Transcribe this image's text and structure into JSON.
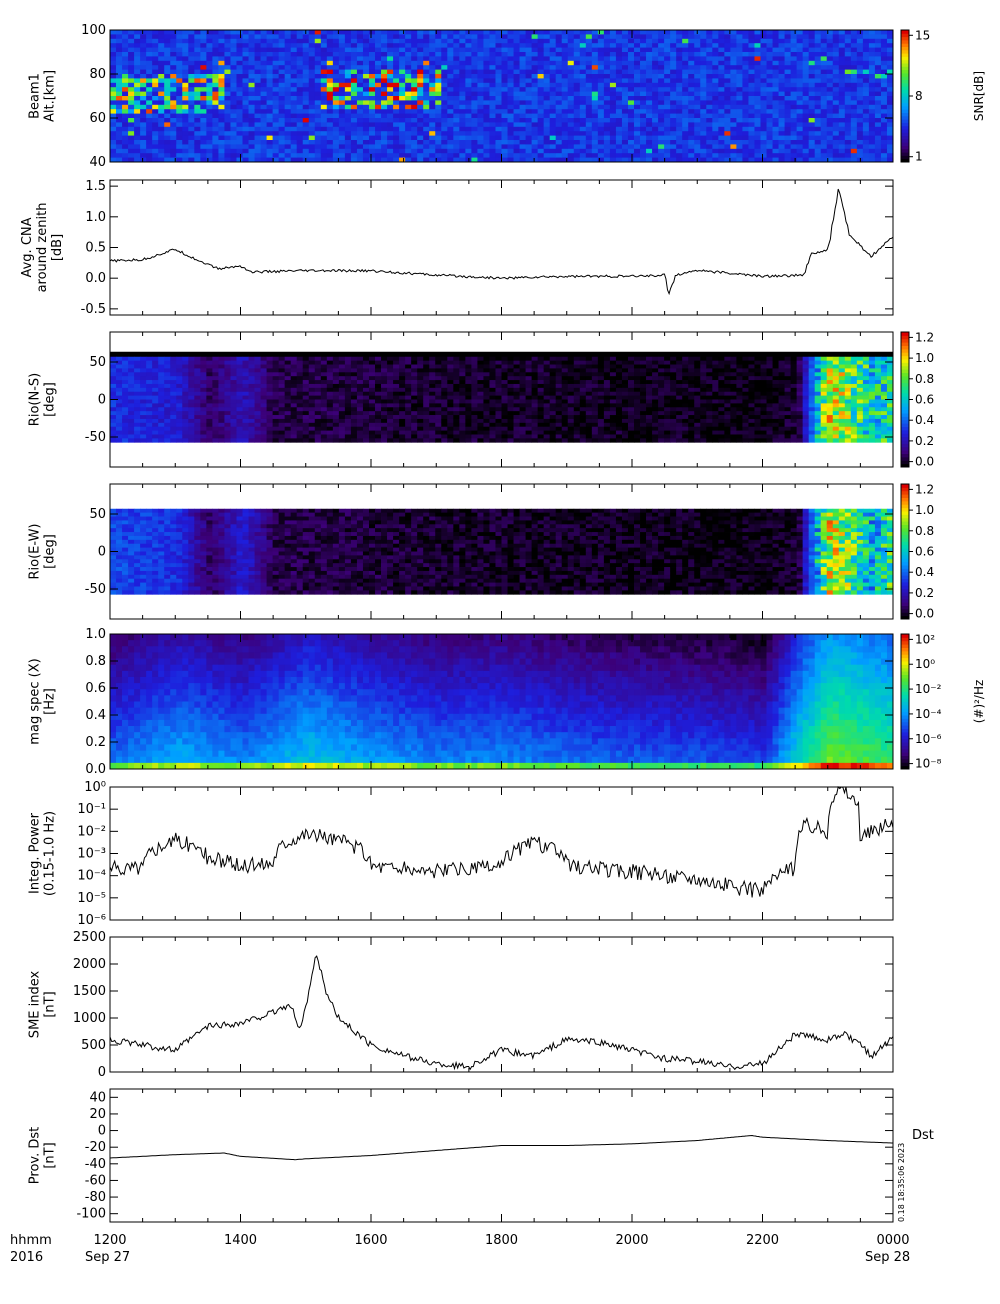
{
  "footer": {
    "row1_label": "hhmm",
    "row2_label": "2016",
    "start_date": "Sep 27",
    "end_date": "Sep 28",
    "time_ticks": [
      "1200",
      "1400",
      "1600",
      "1800",
      "2000",
      "2200",
      "0000"
    ]
  },
  "side_annotation": "0.18 18:35:06 2023",
  "chart_data": [
    {
      "type": "heatmap",
      "ylabel_lines": [
        "Beam1",
        "Alt.[km]"
      ],
      "ylim": [
        40,
        100
      ],
      "yticks": [
        "40",
        "60",
        "80",
        "100"
      ],
      "colorbar": {
        "label": "SNR[dB]",
        "ticks": [
          "1",
          "8",
          "15"
        ],
        "range": [
          1,
          15
        ]
      },
      "features": [
        {
          "t_start": 1200,
          "t_end": 1345,
          "alt_low": 62,
          "alt_high": 80,
          "intensity": 0.55
        },
        {
          "t_start": 1510,
          "t_end": 1700,
          "alt_low": 65,
          "alt_high": 81,
          "intensity": 0.7
        },
        {
          "t_start": 2310,
          "t_end": 2400,
          "alt_low": 78,
          "alt_high": 82,
          "intensity": 0.4
        }
      ]
    },
    {
      "type": "line",
      "ylabel_lines": [
        "Avg. CNA",
        "around zenith",
        "[dB]"
      ],
      "ylim": [
        -0.6,
        1.6
      ],
      "yticks": [
        "-0.5",
        "0.0",
        "0.5",
        "1.0",
        "1.5"
      ],
      "x": [
        1200,
        1230,
        1300,
        1320,
        1340,
        1400,
        1410,
        1500,
        1600,
        1700,
        1800,
        1900,
        2000,
        2030,
        2034,
        2040,
        2100,
        2200,
        2238,
        2245,
        2300,
        2310,
        2320,
        2340,
        2400
      ],
      "values": [
        0.28,
        0.3,
        0.47,
        0.3,
        0.15,
        0.2,
        0.1,
        0.12,
        0.12,
        0.05,
        0.0,
        0.03,
        0.03,
        0.05,
        -0.25,
        0.05,
        0.13,
        0.03,
        0.05,
        0.4,
        0.45,
        1.45,
        0.7,
        0.35,
        0.68
      ]
    },
    {
      "type": "heatmap",
      "ylabel_lines": [
        "Rio(N-S)",
        "[deg]"
      ],
      "ylim": [
        -90,
        90
      ],
      "yticks": [
        "-50",
        "0",
        "50"
      ],
      "colorbar": {
        "label": "",
        "ticks": [
          "0.0",
          "0.2",
          "0.4",
          "0.6",
          "0.8",
          "1.0",
          "1.2"
        ],
        "range": [
          0,
          1.3
        ]
      },
      "profile": {
        "x": [
          1200,
          1300,
          1330,
          1400,
          1430,
          1700,
          2200,
          2230,
          2300,
          2340,
          2400
        ],
        "values": [
          0.35,
          0.3,
          0.1,
          0.25,
          0.08,
          0.05,
          0.02,
          0.05,
          1.0,
          0.65,
          0.8
        ]
      }
    },
    {
      "type": "heatmap",
      "ylabel_lines": [
        "Rio(E-W)",
        "[deg]"
      ],
      "ylim": [
        -90,
        90
      ],
      "yticks": [
        "-50",
        "0",
        "50"
      ],
      "colorbar": {
        "label": "",
        "ticks": [
          "0.0",
          "0.2",
          "0.4",
          "0.6",
          "0.8",
          "1.0",
          "1.2"
        ],
        "range": [
          0,
          1.3
        ]
      },
      "profile": {
        "x": [
          1200,
          1300,
          1330,
          1400,
          1430,
          1700,
          2200,
          2230,
          2300,
          2340,
          2400
        ],
        "values": [
          0.4,
          0.35,
          0.1,
          0.3,
          0.08,
          0.05,
          0.02,
          0.05,
          1.0,
          0.6,
          0.85
        ]
      }
    },
    {
      "type": "heatmap",
      "ylabel_lines": [
        "mag spec (X)",
        "[Hz]"
      ],
      "ylim": [
        0,
        1.0
      ],
      "yticks": [
        "0.0",
        "0.2",
        "0.4",
        "0.6",
        "0.8",
        "1.0"
      ],
      "colorbar": {
        "label": "(#)²/Hz",
        "ticks": [
          "10⁻⁸",
          "10⁻⁶",
          "10⁻⁴",
          "10⁻²",
          "10⁰",
          "10²"
        ],
        "range_log10": [
          -9,
          3
        ]
      },
      "profile": {
        "x": [
          1200,
          1300,
          1400,
          1500,
          1600,
          1700,
          1800,
          1900,
          2000,
          2100,
          2200,
          2230,
          2300,
          2400
        ],
        "values": [
          -4.5,
          -3.5,
          -4.2,
          -3.0,
          -3.8,
          -4.3,
          -4.2,
          -4.6,
          -4.8,
          -5.0,
          -5.3,
          -2.5,
          -0.5,
          -1.5
        ]
      }
    },
    {
      "type": "line",
      "ylabel_lines": [
        "Integ. Power",
        "(0.15-1.0 Hz)"
      ],
      "log_scale": true,
      "ylim_log10": [
        -6,
        0
      ],
      "yticks": [
        "10⁻⁶",
        "10⁻⁵",
        "10⁻⁴",
        "10⁻³",
        "10⁻²",
        "10⁻¹",
        "10⁰"
      ],
      "x": [
        1200,
        1230,
        1300,
        1330,
        1400,
        1430,
        1500,
        1530,
        1600,
        1630,
        1700,
        1730,
        1800,
        1830,
        1900,
        1930,
        2000,
        2030,
        2100,
        2130,
        2200,
        2230,
        2240,
        2300,
        2310,
        2330,
        2400
      ],
      "values": [
        0.0002,
        0.00025,
        0.004,
        0.0006,
        0.00025,
        0.0004,
        0.008,
        0.004,
        0.0003,
        0.0002,
        0.00015,
        0.0002,
        0.00025,
        0.003,
        0.0003,
        0.0002,
        0.00015,
        0.0001,
        8e-05,
        3e-05,
        2e-05,
        0.0002,
        0.02,
        0.01,
        0.9,
        0.005,
        0.02
      ]
    },
    {
      "type": "line",
      "ylabel_lines": [
        "SME index",
        "[nT]"
      ],
      "ylim": [
        0,
        2500
      ],
      "yticks": [
        "0",
        "500",
        "1000",
        "1500",
        "2000",
        "2500"
      ],
      "x": [
        1200,
        1230,
        1300,
        1330,
        1400,
        1430,
        1445,
        1455,
        1500,
        1510,
        1520,
        1530,
        1600,
        1630,
        1700,
        1730,
        1800,
        1830,
        1900,
        1930,
        2000,
        2030,
        2100,
        2130,
        2200,
        2230,
        2300,
        2315,
        2330,
        2340,
        2400
      ],
      "values": [
        600,
        500,
        400,
        850,
        900,
        1100,
        1250,
        800,
        1200,
        2200,
        1400,
        1000,
        500,
        300,
        150,
        100,
        400,
        300,
        600,
        550,
        400,
        250,
        200,
        100,
        150,
        700,
        600,
        700,
        500,
        300,
        650
      ]
    },
    {
      "type": "line",
      "ylabel_lines": [
        "Prov. Dst",
        "[nT]"
      ],
      "ylim": [
        -110,
        50
      ],
      "yticks": [
        "-100",
        "-80",
        "-60",
        "-40",
        "-20",
        "0",
        "20",
        "40"
      ],
      "legend": "Dst",
      "x": [
        1200,
        1300,
        1345,
        1400,
        1450,
        1500,
        1600,
        1700,
        1800,
        1900,
        2000,
        2100,
        2150,
        2200,
        2300,
        2400
      ],
      "values": [
        -33,
        -29,
        -27,
        -31,
        -35,
        -34,
        -30,
        -24,
        -18,
        -18,
        -16,
        -12,
        -6,
        -8,
        -12,
        -15
      ]
    }
  ]
}
